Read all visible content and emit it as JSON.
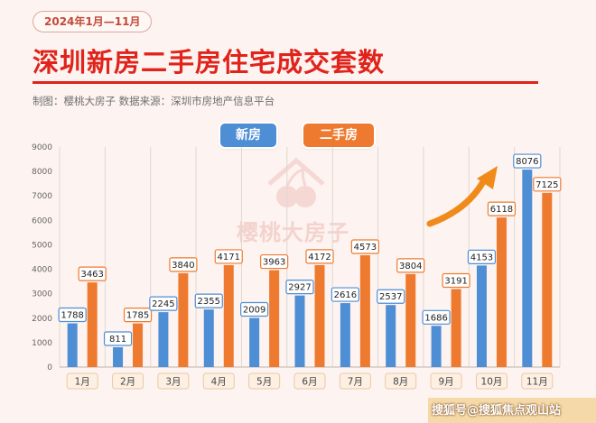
{
  "header": {
    "date_range": "2024年1月—11月",
    "title": "深圳新房二手房住宅成交套数",
    "source": "制图：樱桃大房子   数据来源：深圳市房地产信息平台"
  },
  "watermark": {
    "text": "樱桃大房子",
    "icon": "cherry-house-icon"
  },
  "footer": {
    "text": "搜狐号@搜狐焦点观山站"
  },
  "colors": {
    "new": "#4e8ed4",
    "used": "#ee7a2f",
    "title": "#e0231b",
    "arrow": "#f08a1a"
  },
  "chart_data": {
    "type": "bar",
    "categories": [
      "1月",
      "2月",
      "3月",
      "4月",
      "5月",
      "6月",
      "7月",
      "8月",
      "9月",
      "10月",
      "11月"
    ],
    "series": [
      {
        "name": "新房",
        "color": "#4e8ed4",
        "values": [
          1788,
          811,
          2245,
          2355,
          2009,
          2927,
          2616,
          2537,
          1686,
          4153,
          8076
        ]
      },
      {
        "name": "二手房",
        "color": "#ee7a2f",
        "values": [
          3463,
          1785,
          3840,
          4171,
          3963,
          4172,
          4573,
          3804,
          3191,
          6118,
          7125
        ]
      }
    ],
    "yticks": [
      0,
      1000,
      2000,
      3000,
      4000,
      5000,
      6000,
      7000,
      8000,
      9000
    ],
    "ylim": [
      0,
      9000
    ],
    "legend": "top-center",
    "grid": "vertical",
    "annotation": "upward-arrow"
  }
}
